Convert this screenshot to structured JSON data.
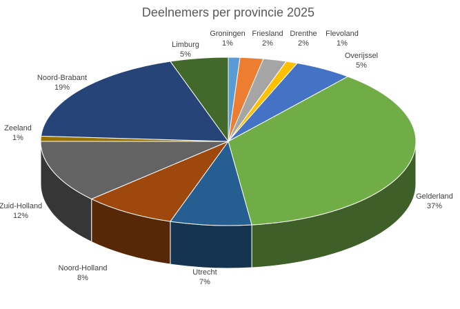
{
  "chart_data": {
    "type": "pie",
    "style": "3d",
    "title": "Deelnemers per provincie 2025",
    "unit": "%",
    "start": "top, clockwise",
    "slices": [
      {
        "label": "Groningen",
        "value": 1,
        "color": "#5B9BD5"
      },
      {
        "label": "Friesland",
        "value": 2,
        "color": "#ED7D31"
      },
      {
        "label": "Drenthe",
        "value": 2,
        "color": "#A5A5A5"
      },
      {
        "label": "Flevoland",
        "value": 1,
        "color": "#FFC000"
      },
      {
        "label": "Overijssel",
        "value": 5,
        "color": "#4472C4"
      },
      {
        "label": "Gelderland",
        "value": 37,
        "color": "#70AD47"
      },
      {
        "label": "Utrecht",
        "value": 7,
        "color": "#255E91"
      },
      {
        "label": "Noord-Holland",
        "value": 8,
        "color": "#9E480E"
      },
      {
        "label": "Zuid-Holland",
        "value": 12,
        "color": "#636363"
      },
      {
        "label": "Zeeland",
        "value": 1,
        "color": "#997300"
      },
      {
        "label": "Noord-Brabant",
        "value": 19,
        "color": "#264478"
      },
      {
        "label": "Limburg",
        "value": 5,
        "color": "#43682B"
      }
    ]
  }
}
